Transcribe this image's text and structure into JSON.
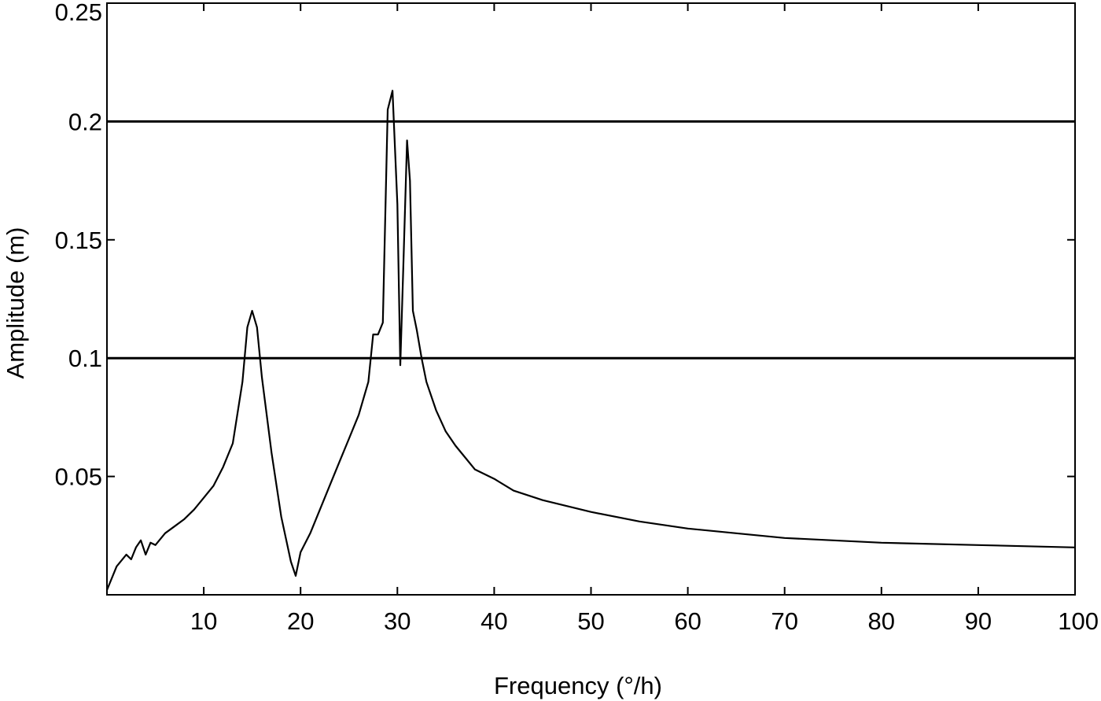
{
  "chart_data": {
    "type": "line",
    "title": "",
    "xlabel": "Frequency (°/h)",
    "ylabel": "Amplitude (m)",
    "xlim": [
      0,
      100
    ],
    "ylim": [
      0,
      0.25
    ],
    "grid": false,
    "reference_lines_y": [
      0.1,
      0.2
    ],
    "x_ticks": [
      10,
      20,
      30,
      40,
      50,
      60,
      70,
      80,
      90,
      100
    ],
    "x_tick_labels": [
      "10",
      "20",
      "30",
      "40",
      "50",
      "60",
      "70",
      "80",
      "90",
      "100"
    ],
    "y_ticks": [
      0.05,
      0.1,
      0.15,
      0.2,
      0.25
    ],
    "y_tick_labels": [
      "0.05",
      "0.1",
      "0.15",
      "0.2",
      "0.25"
    ],
    "series": [
      {
        "x": [
          0,
          1,
          2,
          2.5,
          3,
          3.5,
          4,
          4.5,
          5,
          6,
          7,
          8,
          9,
          10,
          11,
          12,
          13,
          14,
          14.5,
          15,
          15.5,
          16,
          17,
          18,
          19,
          19.5,
          20,
          21,
          22,
          23,
          24,
          25,
          26,
          27,
          27.5,
          28,
          28.5,
          29,
          29.5,
          30,
          30.3,
          30.6,
          31,
          31.3,
          31.6,
          32,
          32.5,
          33,
          34,
          35,
          36,
          37,
          38,
          40,
          42,
          45,
          50,
          55,
          60,
          65,
          70,
          80,
          90,
          100
        ],
        "y": [
          0.002,
          0.012,
          0.017,
          0.015,
          0.02,
          0.023,
          0.017,
          0.022,
          0.021,
          0.026,
          0.029,
          0.032,
          0.036,
          0.041,
          0.046,
          0.054,
          0.064,
          0.09,
          0.113,
          0.12,
          0.113,
          0.092,
          0.06,
          0.033,
          0.014,
          0.008,
          0.018,
          0.026,
          0.036,
          0.046,
          0.056,
          0.066,
          0.076,
          0.09,
          0.11,
          0.11,
          0.115,
          0.205,
          0.213,
          0.165,
          0.097,
          0.137,
          0.192,
          0.175,
          0.12,
          0.112,
          0.1,
          0.09,
          0.078,
          0.069,
          0.063,
          0.058,
          0.053,
          0.049,
          0.044,
          0.04,
          0.035,
          0.031,
          0.028,
          0.026,
          0.024,
          0.022,
          0.021,
          0.02
        ]
      }
    ]
  }
}
